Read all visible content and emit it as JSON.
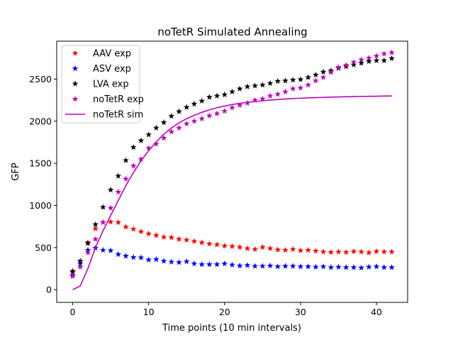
{
  "chart_data": {
    "type": "scatter",
    "title": "noTetR Simulated Annealing",
    "xlabel": "Time points (10 min intervals)",
    "ylabel": "GFP",
    "xlim": [
      -2.1,
      44.1
    ],
    "ylim": [
      -150,
      2950
    ],
    "xticks": [
      0,
      10,
      20,
      30,
      40
    ],
    "yticks": [
      0,
      500,
      1000,
      1500,
      2000,
      2500
    ],
    "grid": false,
    "legend_position": "top-left",
    "series": [
      {
        "name": "AAV exp",
        "marker": "star",
        "color": "#ff0000",
        "x": [
          0,
          1,
          2,
          3,
          4,
          5,
          6,
          7,
          8,
          9,
          10,
          11,
          12,
          13,
          14,
          15,
          16,
          17,
          18,
          19,
          20,
          21,
          22,
          23,
          24,
          25,
          26,
          27,
          28,
          29,
          30,
          31,
          32,
          33,
          34,
          35,
          36,
          37,
          38,
          39,
          40,
          41,
          42
        ],
        "y": [
          210,
          340,
          560,
          725,
          800,
          805,
          800,
          745,
          720,
          690,
          665,
          645,
          625,
          620,
          600,
          590,
          575,
          560,
          545,
          535,
          520,
          515,
          505,
          490,
          480,
          505,
          490,
          475,
          470,
          480,
          465,
          470,
          460,
          450,
          445,
          450,
          445,
          455,
          450,
          440,
          455,
          450,
          450
        ]
      },
      {
        "name": "ASV exp",
        "marker": "star",
        "color": "#0000ff",
        "x": [
          0,
          1,
          2,
          3,
          4,
          5,
          6,
          7,
          8,
          9,
          10,
          11,
          12,
          13,
          14,
          15,
          16,
          17,
          18,
          19,
          20,
          21,
          22,
          23,
          24,
          25,
          26,
          27,
          28,
          29,
          30,
          31,
          32,
          33,
          34,
          35,
          36,
          37,
          38,
          39,
          40,
          41,
          42
        ],
        "y": [
          170,
          310,
          470,
          495,
          470,
          465,
          420,
          400,
          385,
          380,
          355,
          360,
          340,
          330,
          325,
          335,
          310,
          300,
          300,
          300,
          310,
          295,
          285,
          290,
          280,
          280,
          285,
          275,
          280,
          280,
          275,
          275,
          270,
          275,
          265,
          270,
          265,
          265,
          260,
          270,
          275,
          265,
          265
        ]
      },
      {
        "name": "LVA exp",
        "marker": "star",
        "color": "#000000",
        "x": [
          0,
          1,
          2,
          3,
          4,
          5,
          6,
          7,
          8,
          9,
          10,
          11,
          12,
          13,
          14,
          15,
          16,
          17,
          18,
          19,
          20,
          21,
          22,
          23,
          24,
          25,
          26,
          27,
          28,
          29,
          30,
          31,
          32,
          33,
          34,
          35,
          36,
          37,
          38,
          39,
          40,
          41,
          42
        ],
        "y": [
          220,
          340,
          550,
          775,
          980,
          1185,
          1350,
          1535,
          1690,
          1770,
          1840,
          1920,
          1985,
          2060,
          2115,
          2165,
          2205,
          2240,
          2285,
          2300,
          2315,
          2350,
          2385,
          2410,
          2420,
          2430,
          2450,
          2475,
          2480,
          2490,
          2495,
          2520,
          2550,
          2585,
          2600,
          2630,
          2650,
          2670,
          2690,
          2710,
          2720,
          2720,
          2745
        ]
      },
      {
        "name": "noTetR exp",
        "marker": "star",
        "color": "#bf00bf",
        "x": [
          0,
          1,
          2,
          3,
          4,
          5,
          6,
          7,
          8,
          9,
          10,
          11,
          12,
          13,
          14,
          15,
          16,
          17,
          18,
          19,
          20,
          21,
          22,
          23,
          24,
          25,
          26,
          27,
          28,
          29,
          30,
          31,
          32,
          33,
          34,
          35,
          36,
          37,
          38,
          39,
          40,
          41,
          42
        ],
        "y": [
          160,
          270,
          440,
          600,
          800,
          970,
          1160,
          1315,
          1470,
          1550,
          1680,
          1730,
          1800,
          1875,
          1920,
          1970,
          2000,
          2030,
          2065,
          2090,
          2120,
          2160,
          2190,
          2215,
          2250,
          2265,
          2300,
          2320,
          2350,
          2385,
          2395,
          2430,
          2480,
          2520,
          2580,
          2640,
          2665,
          2700,
          2730,
          2750,
          2775,
          2800,
          2815
        ]
      },
      {
        "name": "noTetR sim",
        "marker": "line",
        "color": "#bf00bf",
        "x": [
          0,
          1,
          2,
          3,
          4,
          5,
          6,
          7,
          8,
          9,
          10,
          11,
          12,
          13,
          14,
          15,
          16,
          17,
          18,
          19,
          20,
          21,
          22,
          23,
          24,
          25,
          26,
          27,
          28,
          29,
          30,
          31,
          32,
          33,
          34,
          35,
          36,
          37,
          38,
          39,
          40,
          41,
          42
        ],
        "y": [
          0,
          45,
          250,
          500,
          700,
          880,
          1060,
          1235,
          1390,
          1530,
          1650,
          1755,
          1845,
          1920,
          1980,
          2030,
          2070,
          2105,
          2135,
          2160,
          2180,
          2198,
          2212,
          2224,
          2234,
          2243,
          2251,
          2258,
          2264,
          2269,
          2273,
          2277,
          2280,
          2283,
          2286,
          2288,
          2290,
          2292,
          2294,
          2296,
          2297,
          2299,
          2300
        ]
      }
    ]
  }
}
